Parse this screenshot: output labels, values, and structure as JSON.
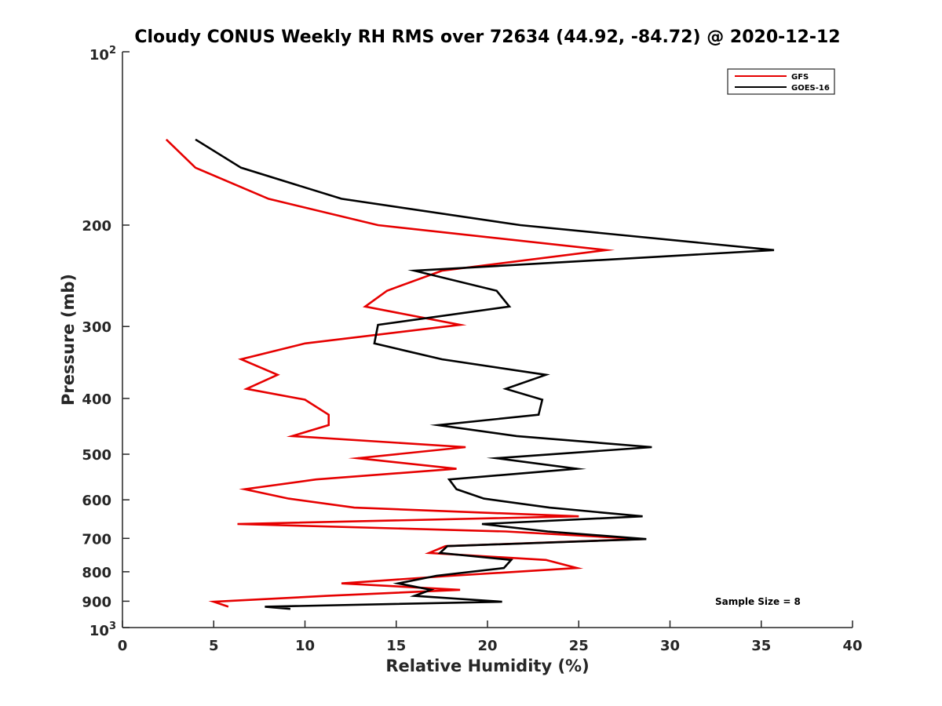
{
  "chart_data": {
    "type": "line",
    "title": "Cloudy CONUS Weekly RH RMS over 72634 (44.92, -84.72) @ 2020-12-12",
    "xlabel": "Relative Humidity (%)",
    "ylabel": "Pressure (mb)",
    "xlim": [
      0,
      40
    ],
    "ylim": [
      100,
      1000
    ],
    "y_scale": "log",
    "y_reversed": true,
    "grid": false,
    "legend_position": "top-right",
    "xticks": [
      0,
      5,
      10,
      15,
      20,
      25,
      30,
      35,
      40
    ],
    "xtick_labels": [
      "0",
      "5",
      "10",
      "15",
      "20",
      "25",
      "30",
      "35",
      "40"
    ],
    "yticks": [
      200,
      300,
      400,
      500,
      600,
      700,
      800,
      900
    ],
    "ytick_labels": [
      "200",
      "300",
      "400",
      "500",
      "600",
      "700",
      "800",
      "900"
    ],
    "y_end_labels": {
      "top_base": "10",
      "top_exp": "2",
      "bottom_base": "10",
      "bottom_exp": "3"
    },
    "annotation": "Sample Size = 8",
    "series": [
      {
        "name": "GFS",
        "color": "#e60000",
        "points": [
          [
            2.4,
            142
          ],
          [
            4.0,
            159
          ],
          [
            8.0,
            180
          ],
          [
            14.0,
            200
          ],
          [
            26.5,
            221
          ],
          [
            17.5,
            240
          ],
          [
            14.5,
            260
          ],
          [
            13.3,
            277
          ],
          [
            18.5,
            298
          ],
          [
            10.0,
            321
          ],
          [
            6.5,
            342
          ],
          [
            8.5,
            364
          ],
          [
            6.8,
            385
          ],
          [
            10.0,
            402
          ],
          [
            11.3,
            427
          ],
          [
            11.3,
            445
          ],
          [
            9.3,
            465
          ],
          [
            18.8,
            486
          ],
          [
            12.9,
            508
          ],
          [
            18.3,
            530
          ],
          [
            10.6,
            553
          ],
          [
            6.7,
            575
          ],
          [
            9.1,
            597
          ],
          [
            12.7,
            619
          ],
          [
            25.0,
            641
          ],
          [
            6.3,
            661
          ],
          [
            21.0,
            681
          ],
          [
            28.5,
            702
          ],
          [
            17.7,
            722
          ],
          [
            16.8,
            742
          ],
          [
            23.2,
            763
          ],
          [
            24.9,
            788
          ],
          [
            18.0,
            813
          ],
          [
            12.0,
            838
          ],
          [
            18.5,
            860
          ],
          [
            11.2,
            881
          ],
          [
            5.0,
            902
          ],
          [
            5.8,
            920
          ]
        ]
      },
      {
        "name": "GOES-16",
        "color": "#000000",
        "points": [
          [
            4.0,
            142
          ],
          [
            6.5,
            159
          ],
          [
            12.0,
            180
          ],
          [
            21.8,
            200
          ],
          [
            35.7,
            221
          ],
          [
            16.0,
            240
          ],
          [
            20.5,
            260
          ],
          [
            21.2,
            277
          ],
          [
            14.0,
            298
          ],
          [
            13.8,
            321
          ],
          [
            17.5,
            342
          ],
          [
            23.2,
            364
          ],
          [
            21.0,
            385
          ],
          [
            23.0,
            402
          ],
          [
            22.8,
            427
          ],
          [
            17.3,
            445
          ],
          [
            21.6,
            465
          ],
          [
            29.0,
            486
          ],
          [
            20.5,
            508
          ],
          [
            24.9,
            530
          ],
          [
            17.9,
            553
          ],
          [
            18.3,
            575
          ],
          [
            19.8,
            597
          ],
          [
            23.4,
            619
          ],
          [
            28.5,
            641
          ],
          [
            19.7,
            661
          ],
          [
            23.3,
            681
          ],
          [
            28.7,
            702
          ],
          [
            17.8,
            722
          ],
          [
            17.4,
            742
          ],
          [
            21.3,
            763
          ],
          [
            20.9,
            788
          ],
          [
            17.2,
            813
          ],
          [
            15.1,
            838
          ],
          [
            16.9,
            860
          ],
          [
            16.0,
            881
          ],
          [
            20.8,
            902
          ],
          [
            7.8,
            920
          ],
          [
            9.2,
            928
          ]
        ]
      }
    ]
  }
}
